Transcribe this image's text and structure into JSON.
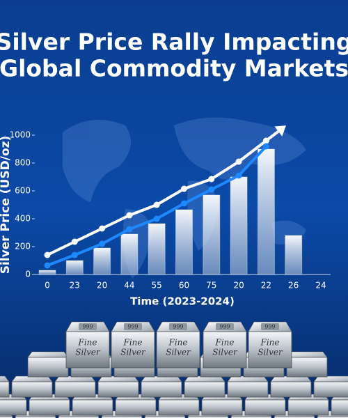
{
  "chart_data": {
    "type": "bar",
    "title_lines": [
      "Silver Price Rally Impacting",
      "Global Commodity Markets"
    ],
    "y_label": "Silver Price (USD/oz)",
    "x_label": "Time (2023-2024)",
    "categories": [
      "0",
      "23",
      "20",
      "44",
      "55",
      "60",
      "75",
      "20",
      "22",
      "26",
      "24"
    ],
    "values": [
      30,
      100,
      190,
      290,
      365,
      465,
      570,
      700,
      900,
      280,
      null
    ],
    "color": "#e6edf5",
    "series": [
      {
        "color": "#ffffff",
        "values": [
          140,
          235,
          330,
          425,
          500,
          615,
          685,
          810,
          960,
          null,
          null
        ]
      },
      {
        "color": "#1e88ff",
        "values": [
          65,
          140,
          220,
          325,
          400,
          510,
          610,
          710,
          920,
          null,
          null
        ]
      }
    ],
    "ylim": [
      0,
      1000
    ],
    "yticks": [
      0,
      200,
      400,
      600,
      800,
      1000
    ],
    "grid": false
  },
  "ingots": {
    "stamp": "999",
    "label_top": "Fine",
    "label_bottom": "Silver"
  }
}
